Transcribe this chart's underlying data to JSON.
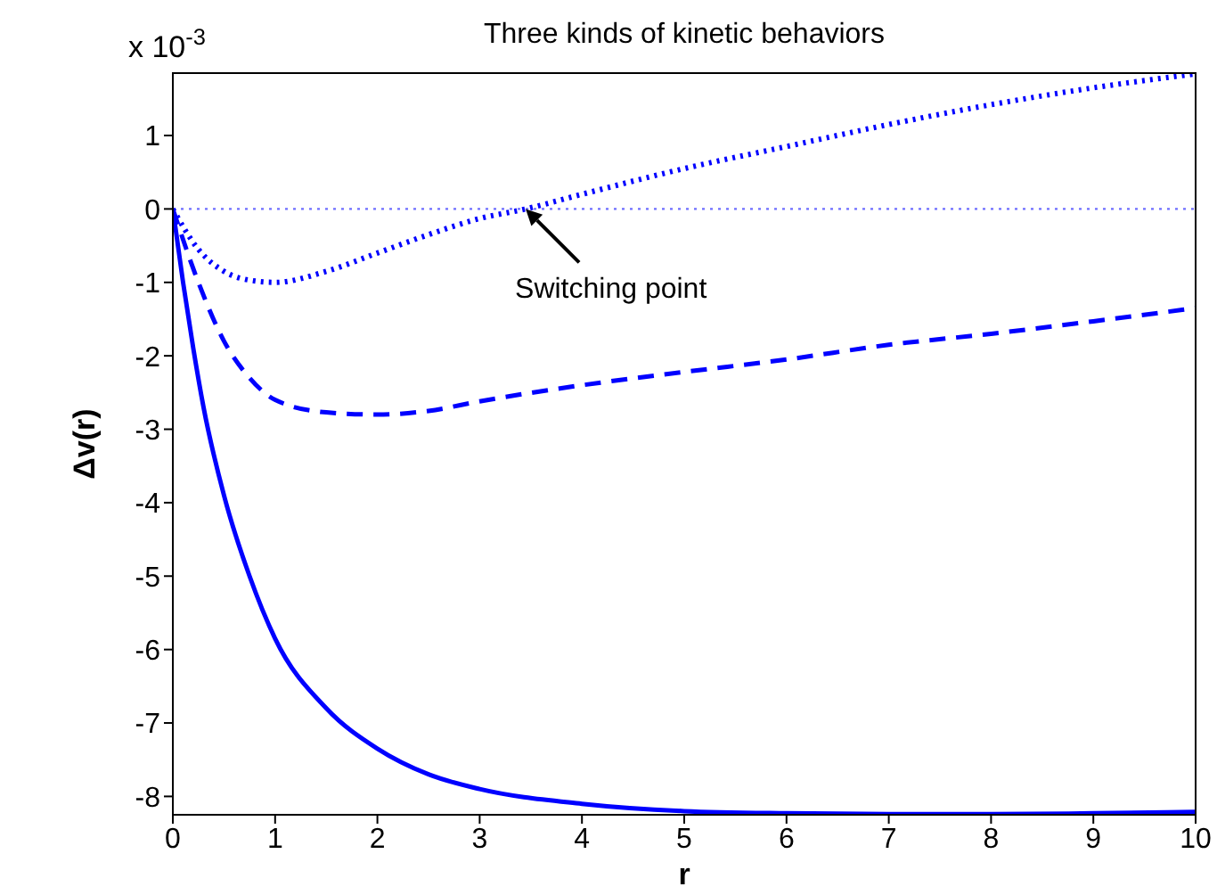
{
  "chart_data": {
    "type": "line",
    "title": "Three kinds of kinetic behaviors",
    "xlabel": "r",
    "ylabel": "Δv(r)",
    "xlim": [
      0,
      10
    ],
    "xticks": [
      0,
      1,
      2,
      3,
      4,
      5,
      6,
      7,
      8,
      9,
      10
    ],
    "ylim": [
      -8.25,
      1.85
    ],
    "yticks": [
      -8,
      -7,
      -6,
      -5,
      -4,
      -3,
      -2,
      -1,
      0,
      1
    ],
    "grid": false,
    "legend": false,
    "marker": "none",
    "annotations": [
      "x 10$^{-3}$",
      {
        "text": "Switching point",
        "x": 3.45,
        "y": 0
      }
    ],
    "ref_lines": [
      {
        "axis": "y",
        "value": 0,
        "color": "#6f6fff",
        "line_style": "dotted"
      }
    ],
    "series": [
      {
        "color": "#0000ff",
        "line_style": "solid",
        "x": [
          0,
          0.1,
          0.2,
          0.3,
          0.5,
          0.75,
          1,
          1.5,
          2,
          2.5,
          3,
          4,
          5,
          6,
          7,
          8,
          9,
          10
        ],
        "values": [
          0,
          -1.0,
          -1.9,
          -2.7,
          -3.9,
          -5.0,
          -5.85,
          -6.8,
          -7.35,
          -7.7,
          -7.9,
          -8.1,
          -8.2,
          -8.23,
          -8.24,
          -8.24,
          -8.23,
          -8.21
        ]
      },
      {
        "color": "#0000ff",
        "line_style": "dashed",
        "x": [
          0,
          0.25,
          0.5,
          0.75,
          1,
          1.5,
          2,
          2.5,
          3,
          4,
          5,
          6,
          7,
          8,
          9,
          10
        ],
        "values": [
          0,
          -1.0,
          -1.8,
          -2.3,
          -2.6,
          -2.77,
          -2.8,
          -2.75,
          -2.62,
          -2.4,
          -2.22,
          -2.05,
          -1.85,
          -1.7,
          -1.53,
          -1.35
        ]
      },
      {
        "color": "#0000ff",
        "line_style": "dotted",
        "x": [
          0,
          0.25,
          0.5,
          0.75,
          1,
          1.5,
          2,
          2.5,
          3,
          3.45,
          4,
          5,
          6,
          7,
          8,
          9,
          10
        ],
        "values": [
          0,
          -0.55,
          -0.85,
          -0.97,
          -1.0,
          -0.85,
          -0.6,
          -0.35,
          -0.13,
          0,
          0.2,
          0.55,
          0.85,
          1.15,
          1.42,
          1.65,
          1.84
        ]
      }
    ]
  }
}
